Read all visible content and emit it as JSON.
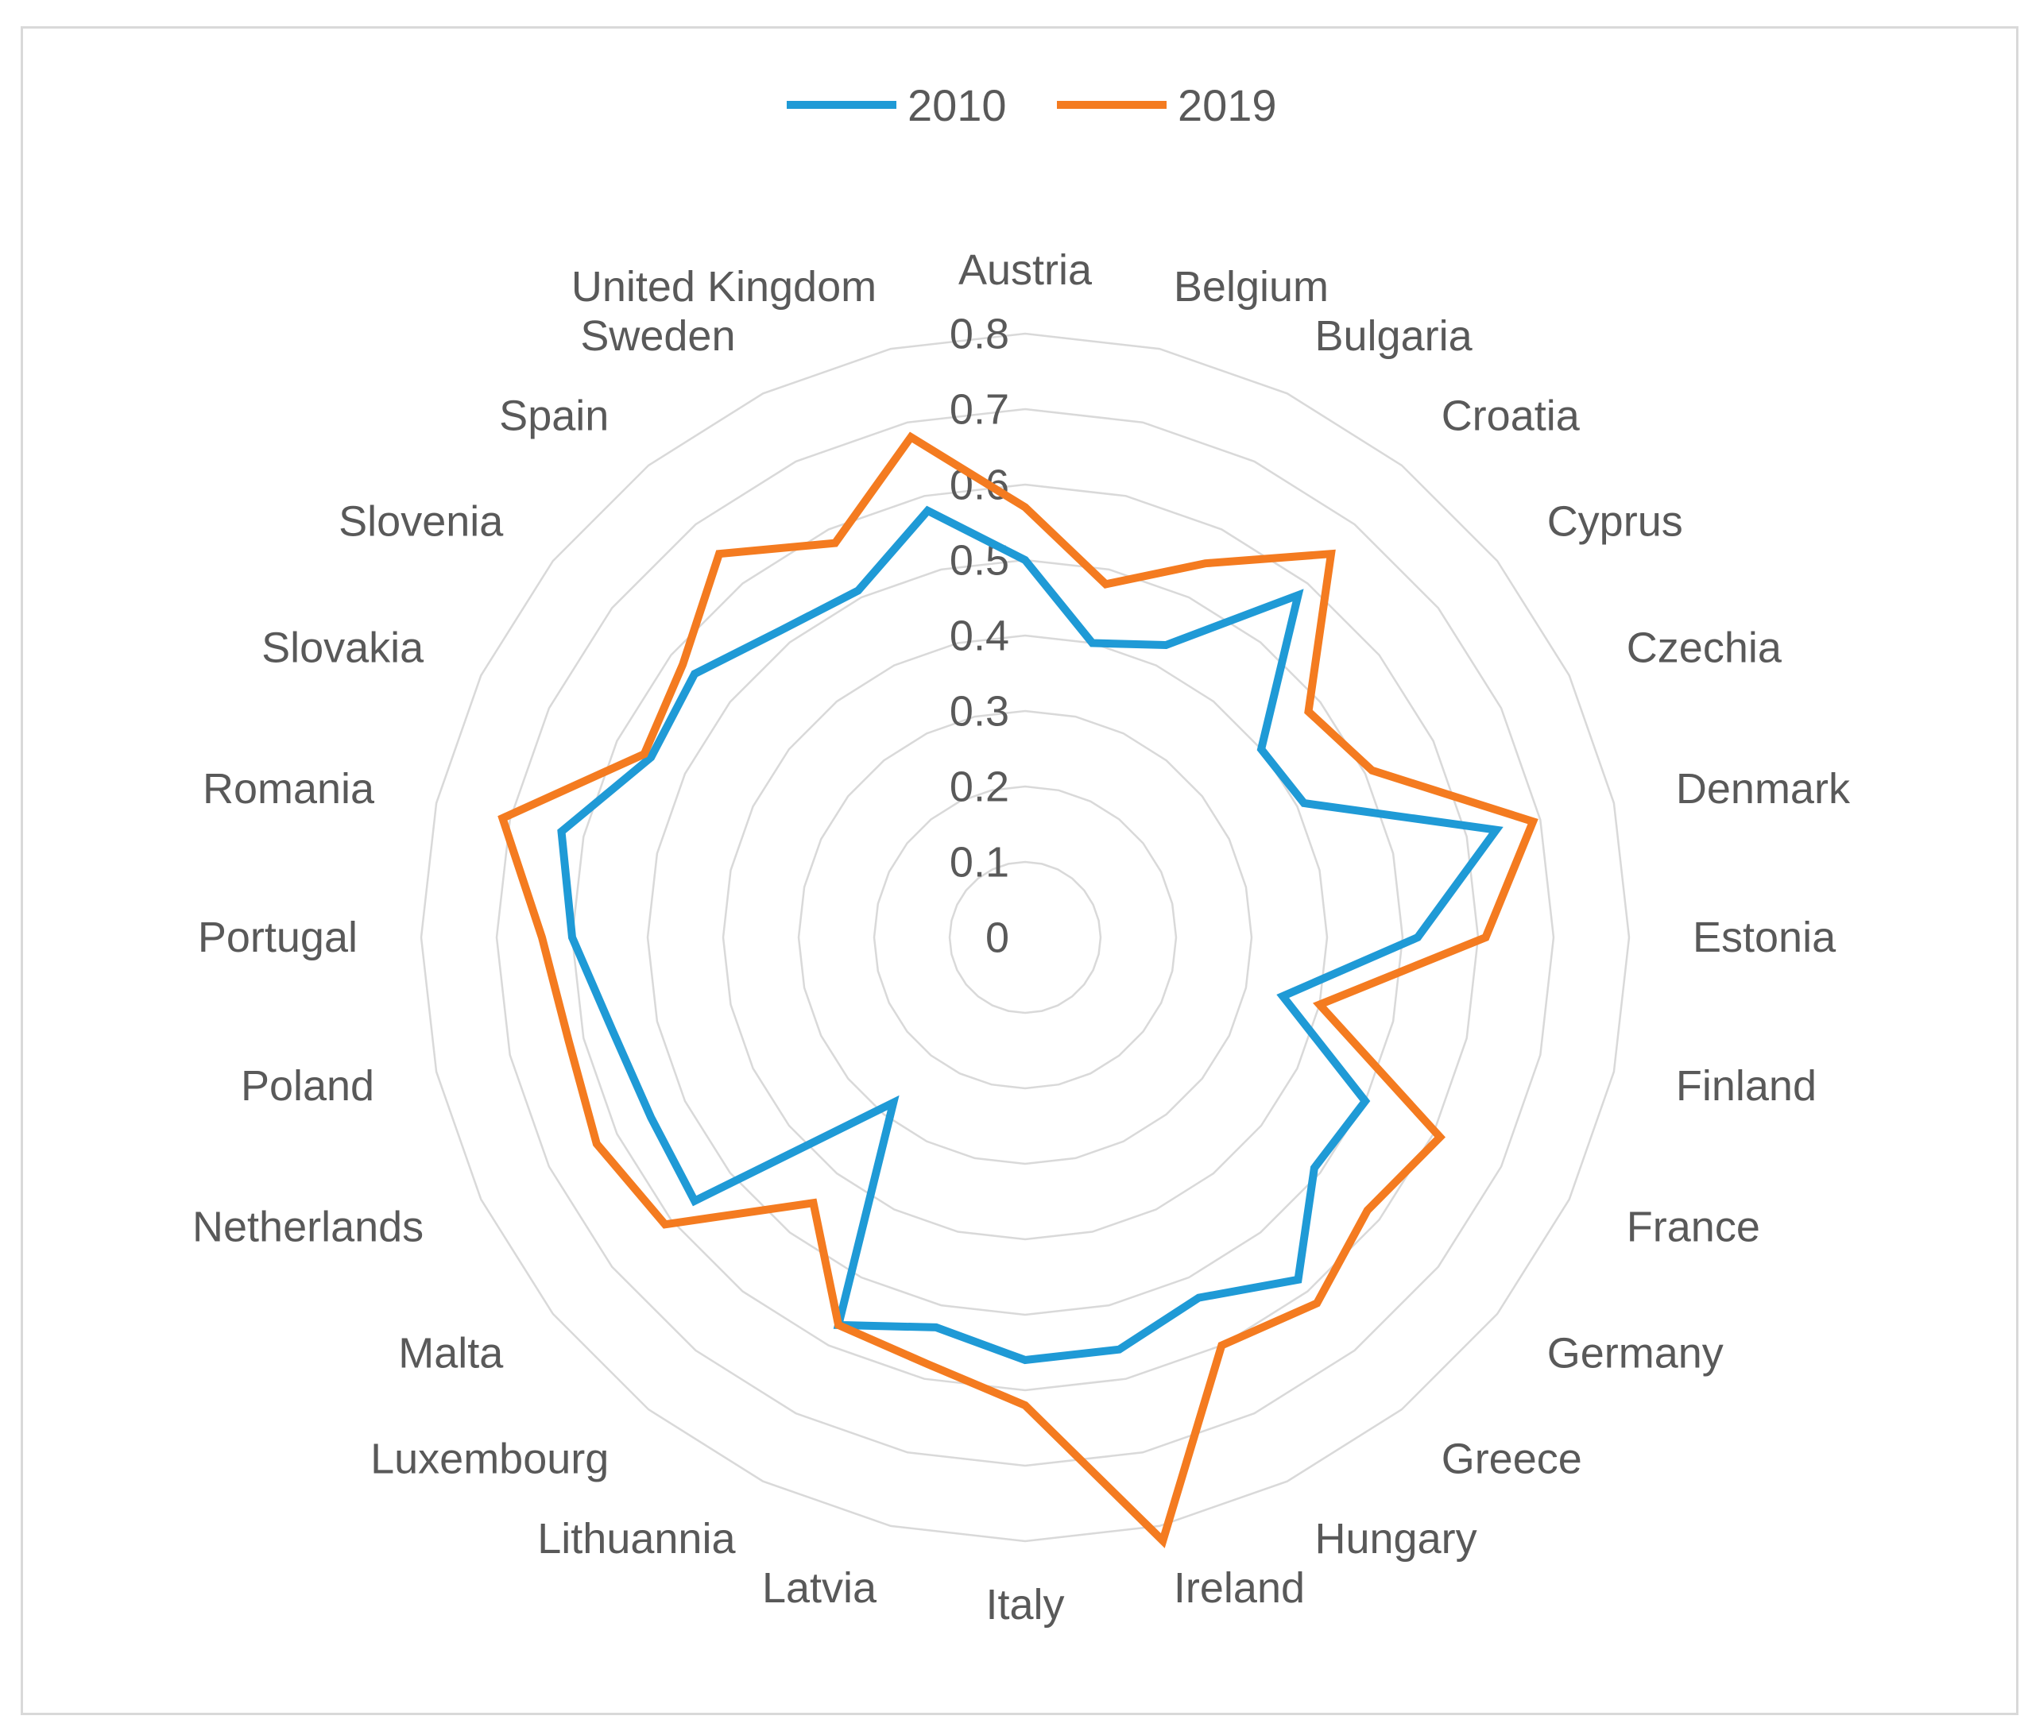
{
  "chart_data": {
    "type": "radar",
    "title": "",
    "categories": [
      "Austria",
      "Belgium",
      "Bulgaria",
      "Croatia",
      "Cyprus",
      "Czechia",
      "Denmark",
      "Estonia",
      "Finland",
      "France",
      "Germany",
      "Greece",
      "Hungary",
      "Ireland",
      "Italy",
      "Latvia",
      "Lithuannia",
      "Luxembourg",
      "Malta",
      "Netherlands",
      "Poland",
      "Portugal",
      "Romania",
      "Slovakia",
      "Slovenia",
      "Spain",
      "Sweden",
      "United Kingdom"
    ],
    "ticks": [
      "0",
      "0.1",
      "0.2",
      "0.3",
      "0.4",
      "0.5",
      "0.6",
      "0.7",
      "0.8"
    ],
    "range": [
      0,
      0.8
    ],
    "series": [
      {
        "name": "2010",
        "color": "#1f9ad6",
        "values": [
          0.5,
          0.4,
          0.43,
          0.58,
          0.4,
          0.41,
          0.64,
          0.52,
          0.35,
          0.5,
          0.49,
          0.58,
          0.53,
          0.56,
          0.56,
          0.53,
          0.57,
          0.28,
          0.56,
          0.55,
          0.56,
          0.6,
          0.63,
          0.55,
          0.56,
          0.52,
          0.51,
          0.58
        ]
      },
      {
        "name": "2019",
        "color": "#f47b20",
        "values": [
          0.57,
          0.48,
          0.55,
          0.65,
          0.48,
          0.51,
          0.69,
          0.61,
          0.4,
          0.61,
          0.58,
          0.62,
          0.6,
          0.82,
          0.62,
          0.58,
          0.57,
          0.45,
          0.61,
          0.63,
          0.62,
          0.64,
          0.71,
          0.56,
          0.58,
          0.65,
          0.58,
          0.68
        ]
      }
    ],
    "legend_position": "top"
  }
}
